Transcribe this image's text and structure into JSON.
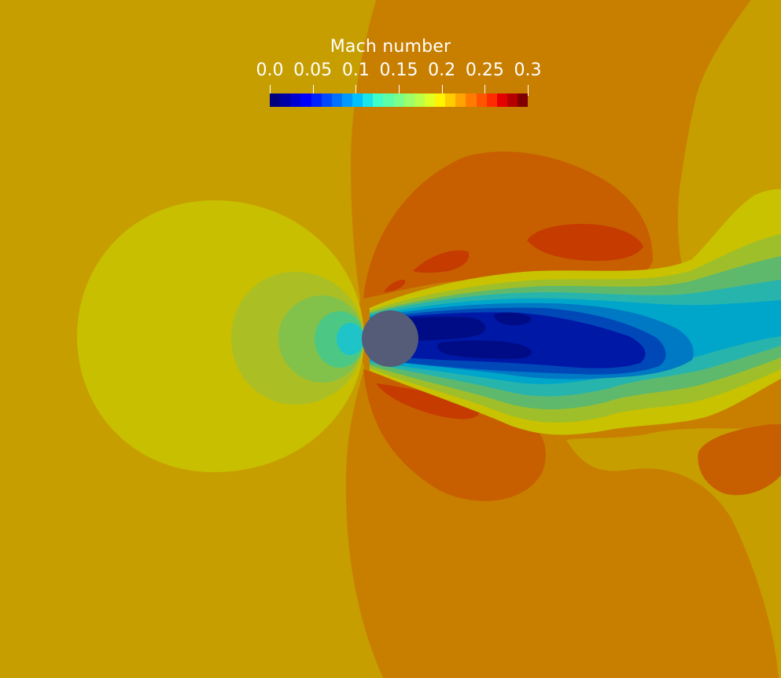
{
  "legend": {
    "title": "Mach number",
    "ticks": [
      "0.0",
      "0.05",
      "0.1",
      "0.15",
      "0.2",
      "0.25",
      "0.3"
    ],
    "range": [
      0.0,
      0.3
    ]
  },
  "colormap": [
    "#00007f",
    "#0000a5",
    "#0000d0",
    "#0000ff",
    "#0021ff",
    "#0049ff",
    "#0071ff",
    "#0099ff",
    "#00c0ff",
    "#1ae4ea",
    "#3effc6",
    "#5cffa8",
    "#7aff8a",
    "#9aff6a",
    "#bcff48",
    "#e0ff24",
    "#fff300",
    "#ffcc00",
    "#ffa400",
    "#ff7c00",
    "#ff5400",
    "#ff2c00",
    "#e50000",
    "#b60000",
    "#7f0000"
  ],
  "colors": {
    "freestream": "#c79e00",
    "stagnation_ring_1": "#c8bf00",
    "stagnation_ring_2": "#abbf24",
    "stagnation_ring_3": "#82c14a",
    "stagnation_ring_4": "#4cc884",
    "stagnation_ring_5": "#1ec4c8",
    "accelerated_1": "#c87f00",
    "accelerated_2": "#c75f00",
    "accelerated_3": "#c53b00",
    "wake_outer": "#c8c200",
    "wake_2": "#9ebf2a",
    "wake_3": "#5eb96d",
    "wake_4": "#27b4ad",
    "wake_5": "#00a6c9",
    "wake_6": "#0079c5",
    "wake_7": "#0048b8",
    "wake_core": "#0018a6",
    "wake_deep": "#000c86",
    "cylinder": "#545c77"
  }
}
